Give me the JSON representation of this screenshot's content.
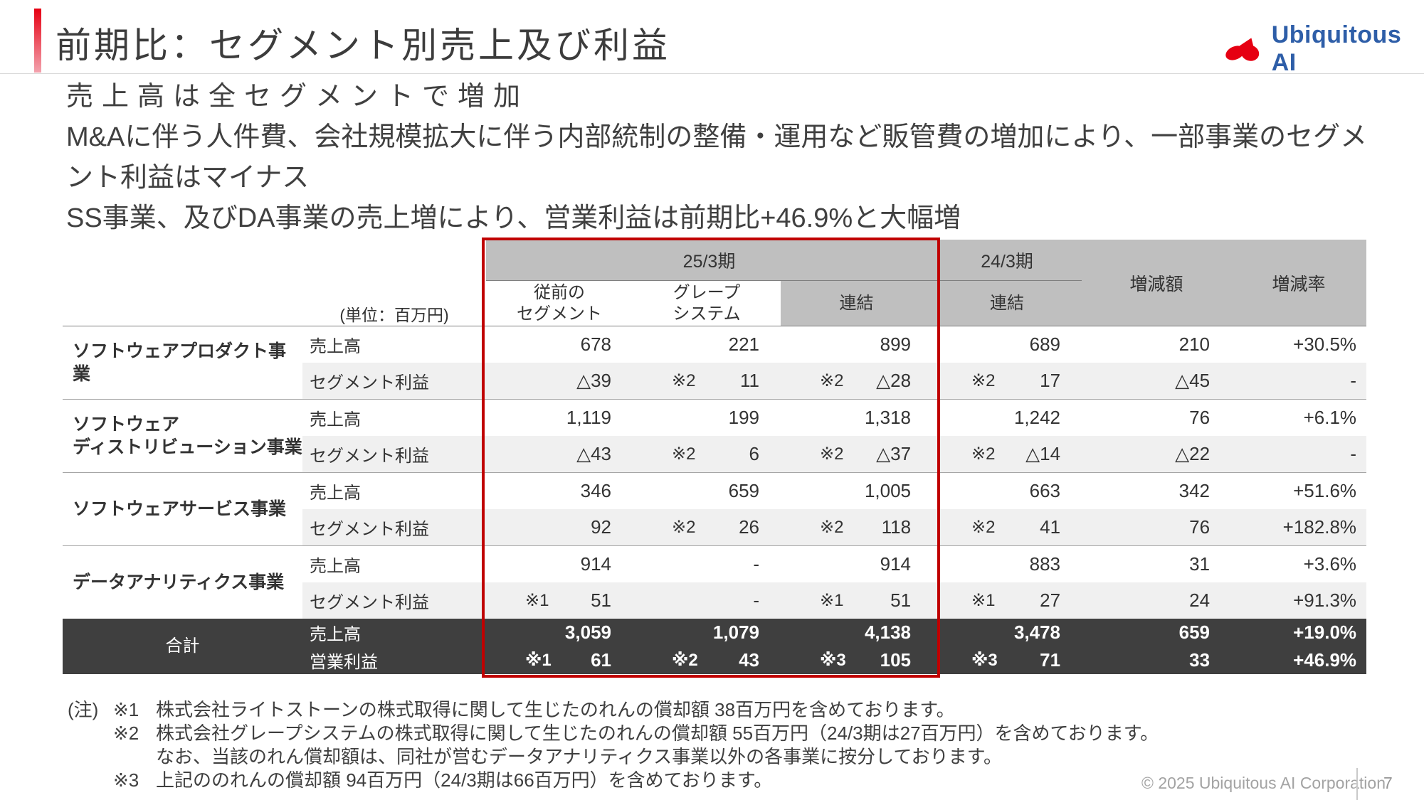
{
  "slide": {
    "title": "前期比：セグメント別売上及び利益",
    "lead_lines": [
      "売上高は全セグメントで増加",
      "M&Aに伴う人件費、会社規模拡大に伴う内部統制の整備・運用など販管費の増加により、一部事業のセグメント利益はマイナス",
      "SS事業、及びDA事業の売上増により、営業利益は前期比+46.9%と大幅増"
    ],
    "logo_text": "Ubiquitous AI",
    "footer_copyright": "© 2025 Ubiquitous AI Corporation",
    "page_number": "7"
  },
  "table": {
    "unit_label": "(単位：百万円)",
    "header": {
      "period_current": "25/3期",
      "period_prior": "24/3期",
      "col_prev_segment": "従前の\nセグメント",
      "col_grape": "グレープ\nシステム",
      "col_consolidated_current": "連結",
      "col_consolidated_prior": "連結",
      "col_change_amount": "増減額",
      "col_change_rate": "増減率"
    },
    "groups": [
      {
        "segment": "ソフトウェアプロダクト事業",
        "total": false,
        "rows": [
          {
            "item": "売上高",
            "cells": [
              {
                "v": "678"
              },
              {
                "v": "221"
              },
              {
                "v": "899"
              },
              {
                "v": "689"
              },
              {
                "v": "210"
              },
              {
                "v": "+30.5%"
              }
            ]
          },
          {
            "item": "セグメント利益",
            "cells": [
              {
                "v": "△39"
              },
              {
                "n": "※2",
                "v": "11"
              },
              {
                "n": "※2",
                "v": "△28"
              },
              {
                "n": "※2",
                "v": "17"
              },
              {
                "v": "△45"
              },
              {
                "v": "-"
              }
            ]
          }
        ]
      },
      {
        "segment": "ソフトウェア\nディストリビューション事業",
        "total": false,
        "rows": [
          {
            "item": "売上高",
            "cells": [
              {
                "v": "1,119"
              },
              {
                "v": "199"
              },
              {
                "v": "1,318"
              },
              {
                "v": "1,242"
              },
              {
                "v": "76"
              },
              {
                "v": "+6.1%"
              }
            ]
          },
          {
            "item": "セグメント利益",
            "cells": [
              {
                "v": "△43"
              },
              {
                "n": "※2",
                "v": "6"
              },
              {
                "n": "※2",
                "v": "△37"
              },
              {
                "n": "※2",
                "v": "△14"
              },
              {
                "v": "△22"
              },
              {
                "v": "-"
              }
            ]
          }
        ]
      },
      {
        "segment": "ソフトウェアサービス事業",
        "total": false,
        "rows": [
          {
            "item": "売上高",
            "cells": [
              {
                "v": "346"
              },
              {
                "v": "659"
              },
              {
                "v": "1,005"
              },
              {
                "v": "663"
              },
              {
                "v": "342"
              },
              {
                "v": "+51.6%"
              }
            ]
          },
          {
            "item": "セグメント利益",
            "cells": [
              {
                "v": "92"
              },
              {
                "n": "※2",
                "v": "26"
              },
              {
                "n": "※2",
                "v": "118"
              },
              {
                "n": "※2",
                "v": "41"
              },
              {
                "v": "76"
              },
              {
                "v": "+182.8%"
              }
            ]
          }
        ]
      },
      {
        "segment": "データアナリティクス事業",
        "total": false,
        "rows": [
          {
            "item": "売上高",
            "cells": [
              {
                "v": "914"
              },
              {
                "v": "-"
              },
              {
                "v": "914"
              },
              {
                "v": "883"
              },
              {
                "v": "31"
              },
              {
                "v": "+3.6%"
              }
            ]
          },
          {
            "item": "セグメント利益",
            "cells": [
              {
                "n": "※1",
                "v": "51"
              },
              {
                "v": "-"
              },
              {
                "n": "※1",
                "v": "51"
              },
              {
                "n": "※1",
                "v": "27"
              },
              {
                "v": "24"
              },
              {
                "v": "+91.3%"
              }
            ]
          }
        ]
      },
      {
        "segment": "合計",
        "total": true,
        "rows": [
          {
            "item": "売上高",
            "cells": [
              {
                "v": "3,059"
              },
              {
                "v": "1,079"
              },
              {
                "v": "4,138"
              },
              {
                "v": "3,478"
              },
              {
                "v": "659"
              },
              {
                "v": "+19.0%"
              }
            ]
          },
          {
            "item": "営業利益",
            "cells": [
              {
                "n": "※1",
                "v": "61"
              },
              {
                "n": "※2",
                "v": "43"
              },
              {
                "n": "※3",
                "v": "105"
              },
              {
                "n": "※3",
                "v": "71"
              },
              {
                "v": "33"
              },
              {
                "v": "+46.9%"
              }
            ]
          }
        ]
      }
    ]
  },
  "notes": {
    "prefix": "(注)",
    "rows": [
      {
        "marker": "※1",
        "text": "株式会社ライトストーンの株式取得に関して生じたのれんの償却額 38百万円を含めております。"
      },
      {
        "marker": "※2",
        "text": "株式会社グレープシステムの株式取得に関して生じたのれんの償却額 55百万円（24/3期は27百万円）を含めております。"
      },
      {
        "marker": "",
        "text": "なお、当該のれん償却額は、同社が営むデータアナリティクス事業以外の各事業に按分しております。"
      },
      {
        "marker": "※3",
        "text": "上記ののれんの償却額 94百万円（24/3期は66百万円）を含めております。"
      }
    ]
  },
  "colors": {
    "accent_red": "#e60012",
    "highlight_box_red": "#c00000",
    "header_gray": "#bfbfbf",
    "row_stripe_gray": "#f0f0f0",
    "total_row_dark": "#3f3f3f",
    "logo_blue": "#2e5ea8"
  }
}
